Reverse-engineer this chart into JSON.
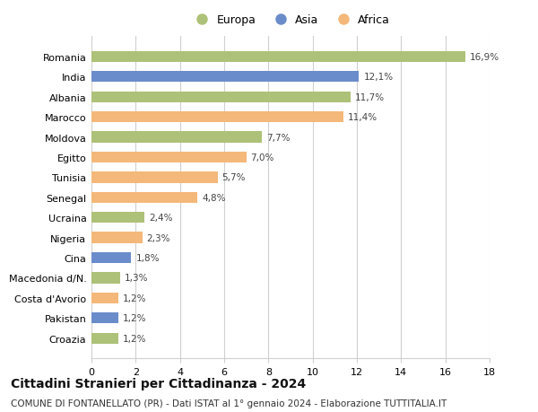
{
  "countries": [
    "Romania",
    "India",
    "Albania",
    "Marocco",
    "Moldova",
    "Egitto",
    "Tunisia",
    "Senegal",
    "Ucraina",
    "Nigeria",
    "Cina",
    "Macedonia d/N.",
    "Costa d'Avorio",
    "Pakistan",
    "Croazia"
  ],
  "values": [
    16.9,
    12.1,
    11.7,
    11.4,
    7.7,
    7.0,
    5.7,
    4.8,
    2.4,
    2.3,
    1.8,
    1.3,
    1.2,
    1.2,
    1.2
  ],
  "labels": [
    "16,9%",
    "12,1%",
    "11,7%",
    "11,4%",
    "7,7%",
    "7,0%",
    "5,7%",
    "4,8%",
    "2,4%",
    "2,3%",
    "1,8%",
    "1,3%",
    "1,2%",
    "1,2%",
    "1,2%"
  ],
  "continents": [
    "Europa",
    "Asia",
    "Europa",
    "Africa",
    "Europa",
    "Africa",
    "Africa",
    "Africa",
    "Europa",
    "Africa",
    "Asia",
    "Europa",
    "Africa",
    "Asia",
    "Europa"
  ],
  "colors": {
    "Europa": "#adc178",
    "Asia": "#6b8cca",
    "Africa": "#f4b87a"
  },
  "xlim": [
    0,
    18
  ],
  "xticks": [
    0,
    2,
    4,
    6,
    8,
    10,
    12,
    14,
    16,
    18
  ],
  "title": "Cittadini Stranieri per Cittadinanza - 2024",
  "subtitle": "COMUNE DI FONTANELLATO (PR) - Dati ISTAT al 1° gennaio 2024 - Elaborazione TUTTITALIA.IT",
  "background_color": "#ffffff",
  "grid_color": "#d0d0d0",
  "bar_height": 0.55,
  "label_fontsize": 7.5,
  "ytick_fontsize": 8,
  "xtick_fontsize": 8,
  "title_fontsize": 10,
  "subtitle_fontsize": 7.5
}
